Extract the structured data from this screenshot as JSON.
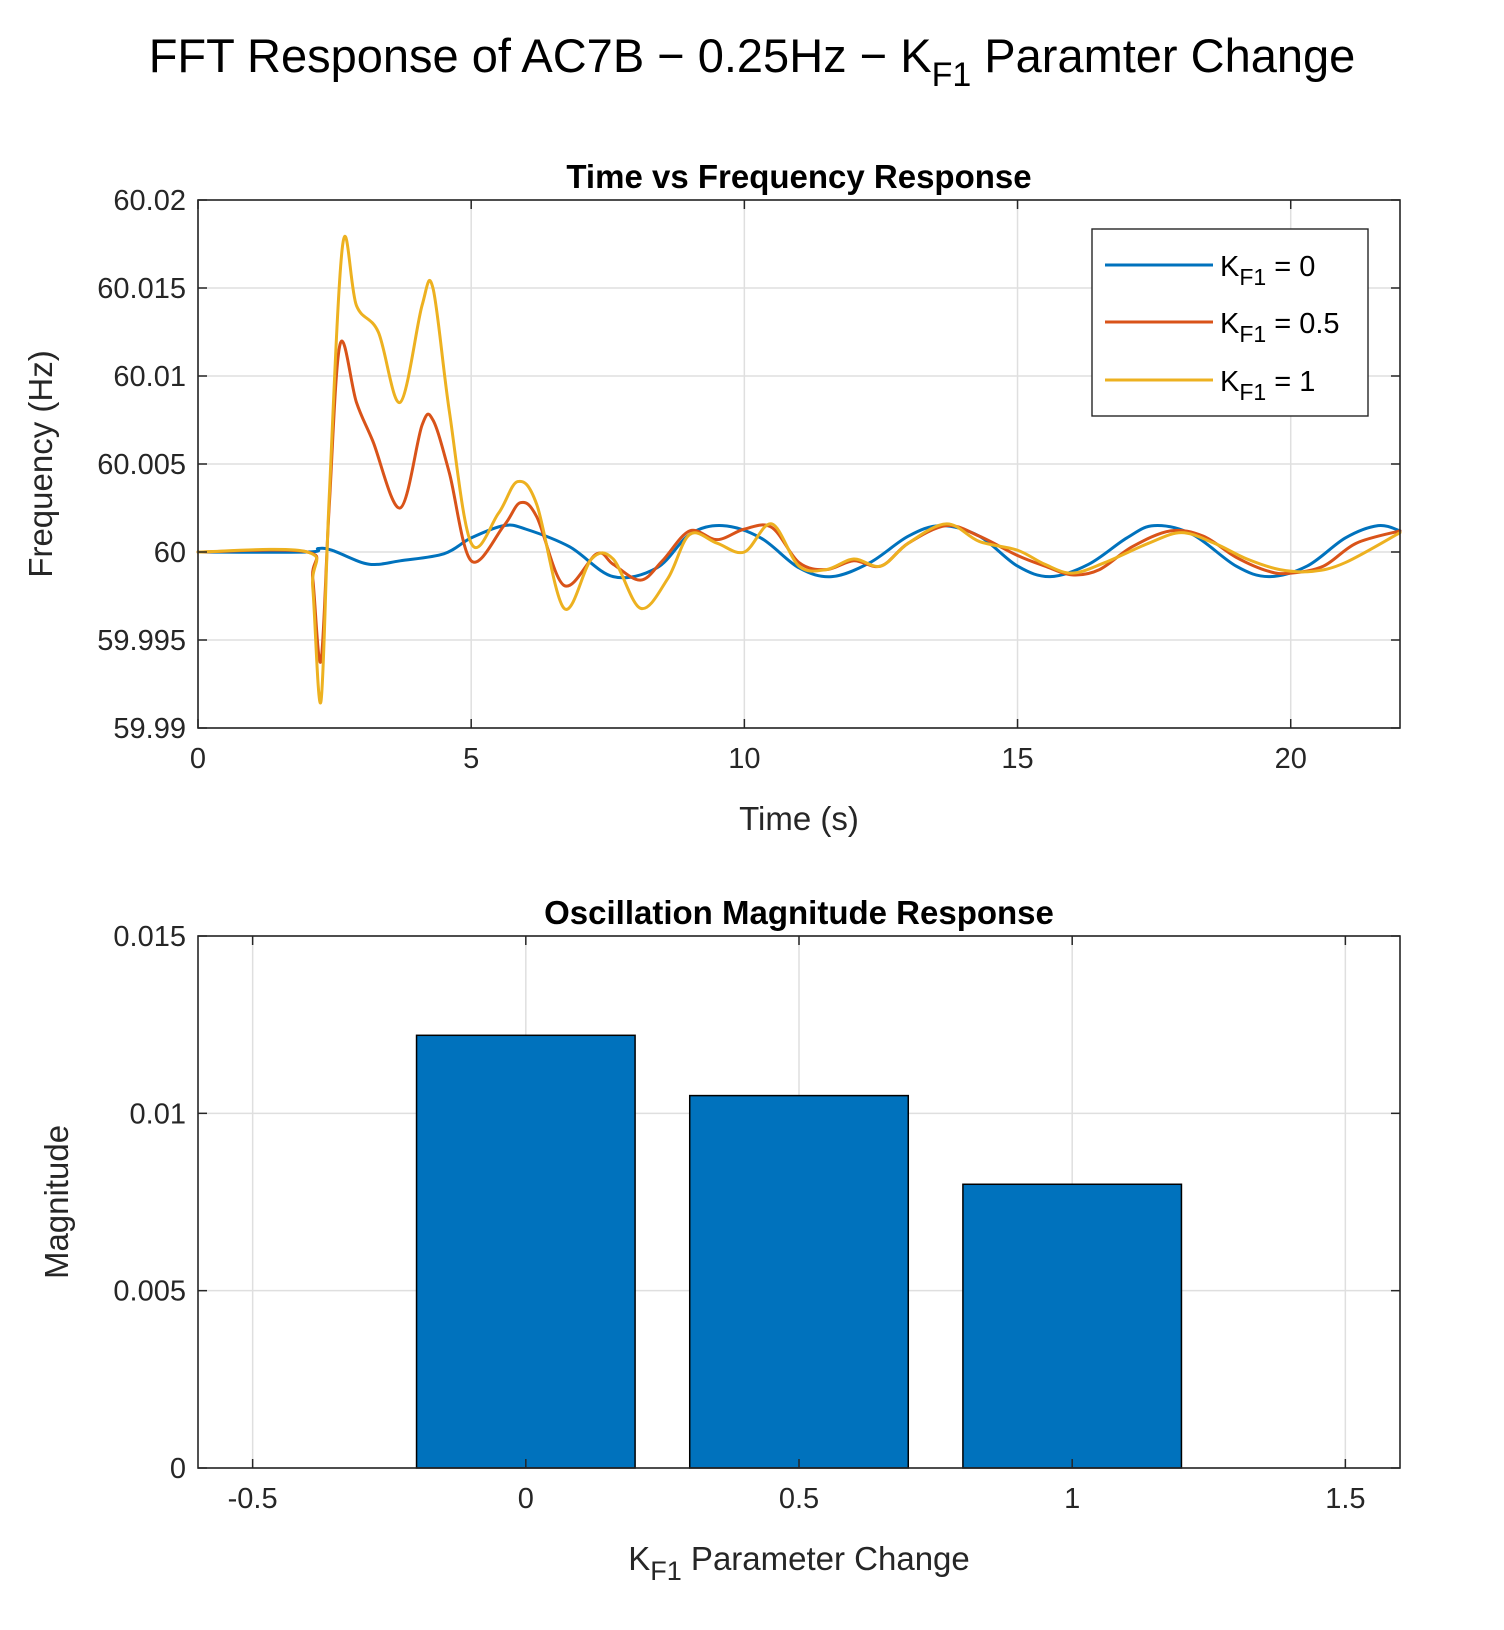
{
  "figure": {
    "title": {
      "main": "FFT Response of AC7B − 0.25Hz − K",
      "sub": "F1",
      "tail": " Paramter Change"
    }
  },
  "chart_data": [
    {
      "type": "line",
      "title": "Time vs Frequency Response",
      "xlabel": "Time (s)",
      "ylabel": "Frequency (Hz)",
      "xlim": [
        0,
        22
      ],
      "ylim": [
        59.99,
        60.02
      ],
      "xticks": [
        0,
        5,
        10,
        15,
        20
      ],
      "xtick_labels": [
        "0",
        "5",
        "10",
        "15",
        "20"
      ],
      "yticks": [
        59.99,
        59.995,
        60,
        60.005,
        60.01,
        60.015,
        60.02
      ],
      "ytick_labels": [
        "59.99",
        "59.995",
        "60",
        "60.005",
        "60.01",
        "60.015",
        "60.02"
      ],
      "grid": true,
      "legend_position": "top-right",
      "series": [
        {
          "name": "K_F1 = 0",
          "legend": {
            "k": "K",
            "sub": "F1",
            "rest": " = 0"
          },
          "color": "#0072BD",
          "x": [
            0,
            2.0,
            2.2,
            2.45,
            3.0,
            3.3,
            3.7,
            4.5,
            5.0,
            5.6,
            6.0,
            6.8,
            7.6,
            8.4,
            9.0,
            9.6,
            10.3,
            11.0,
            11.6,
            12.3,
            13.0,
            13.6,
            14.3,
            15.0,
            15.6,
            16.3,
            17.0,
            17.5,
            18.2,
            19.0,
            19.6,
            20.3,
            21.0,
            21.6,
            22.0
          ],
          "y": [
            60.0,
            60.0,
            60.0002,
            60.0001,
            59.9994,
            59.9993,
            59.9995,
            59.9999,
            60.0008,
            60.0015,
            60.0013,
            60.0003,
            59.9986,
            59.9991,
            60.001,
            60.0015,
            60.0008,
            59.9991,
            59.9986,
            59.9994,
            60.0009,
            60.0015,
            60.0009,
            59.9992,
            59.9986,
            59.9993,
            60.0008,
            60.0015,
            60.001,
            59.9992,
            59.9986,
            59.9992,
            60.0008,
            60.0015,
            60.0012
          ]
        },
        {
          "name": "K_F1 = 0.5",
          "legend": {
            "k": "K",
            "sub": "F1",
            "rest": " = 0.5"
          },
          "color": "#D95319",
          "x": [
            0,
            2.0,
            2.1,
            2.25,
            2.4,
            2.6,
            2.9,
            3.2,
            3.7,
            4.1,
            4.3,
            4.6,
            5.0,
            5.6,
            5.9,
            6.2,
            6.7,
            7.3,
            7.6,
            8.1,
            8.5,
            9.0,
            9.5,
            10.0,
            10.5,
            11.0,
            11.5,
            12.0,
            12.5,
            13.0,
            13.7,
            14.3,
            15.0,
            15.5,
            16.0,
            16.5,
            17.1,
            17.8,
            18.4,
            19.0,
            19.6,
            20.0,
            20.6,
            21.2,
            22.0
          ],
          "y": [
            60.0,
            60.0,
            59.9985,
            59.9938,
            60.0025,
            60.0118,
            60.0085,
            60.0063,
            60.0025,
            60.0072,
            60.0075,
            60.0045,
            59.9995,
            60.0015,
            60.0028,
            60.002,
            59.9981,
            59.9999,
            59.9993,
            59.9984,
            59.9995,
            60.0012,
            60.0007,
            60.0013,
            60.0014,
            59.9994,
            59.999,
            59.9995,
            59.9992,
            60.0005,
            60.0015,
            60.0009,
            59.9998,
            59.9992,
            59.9987,
            59.999,
            60.0003,
            60.0012,
            60.0009,
            59.9997,
            59.9989,
            59.9988,
            59.9992,
            60.0005,
            60.0012
          ]
        },
        {
          "name": "K_F1 = 1",
          "legend": {
            "k": "K",
            "sub": "F1",
            "rest": " = 1"
          },
          "color": "#EDB120",
          "x": [
            0,
            2.0,
            2.1,
            2.25,
            2.4,
            2.65,
            2.9,
            3.3,
            3.7,
            4.1,
            4.3,
            4.6,
            5.0,
            5.5,
            5.85,
            6.2,
            6.7,
            7.2,
            7.6,
            8.1,
            8.6,
            9.0,
            9.5,
            10.0,
            10.5,
            11.0,
            11.5,
            12.0,
            12.5,
            13.0,
            13.7,
            14.3,
            15.0,
            15.5,
            16.0,
            16.6,
            17.4,
            18.0,
            18.6,
            19.2,
            19.8,
            20.4,
            21.0,
            22.0
          ],
          "y": [
            60.0,
            60.0,
            59.998,
            59.9915,
            60.003,
            60.0175,
            60.014,
            60.0125,
            60.0085,
            60.014,
            60.015,
            60.008,
            60.0005,
            60.0022,
            60.004,
            60.0027,
            59.9968,
            59.9996,
            59.9996,
            59.9968,
            59.9985,
            60.001,
            60.0005,
            60.0,
            60.0016,
            59.9992,
            59.999,
            59.9996,
            59.9992,
            60.0005,
            60.0016,
            60.0006,
            60.0001,
            59.9993,
            59.9988,
            59.9994,
            60.0005,
            60.0011,
            60.0005,
            59.9996,
            59.999,
            59.9989,
            59.9994,
            60.0011
          ]
        }
      ]
    },
    {
      "type": "bar",
      "title": "Oscillation Magnitude Response",
      "xlabel": {
        "k": "K",
        "sub": "F1",
        "rest": " Parameter Change"
      },
      "ylabel": "Magnitude",
      "categories": [
        0,
        0.5,
        1
      ],
      "values": [
        0.0122,
        0.0105,
        0.008
      ],
      "bar_width": 0.4,
      "bar_color": "#0072BD",
      "xlim": [
        -0.6,
        1.6
      ],
      "ylim": [
        0,
        0.015
      ],
      "xticks": [
        -0.5,
        0,
        0.5,
        1,
        1.5
      ],
      "xtick_labels": [
        "-0.5",
        "0",
        "0.5",
        "1",
        "1.5"
      ],
      "yticks": [
        0,
        0.005,
        0.01,
        0.015
      ],
      "ytick_labels": [
        "0",
        "0.005",
        "0.01",
        "0.015"
      ],
      "grid": true
    }
  ]
}
